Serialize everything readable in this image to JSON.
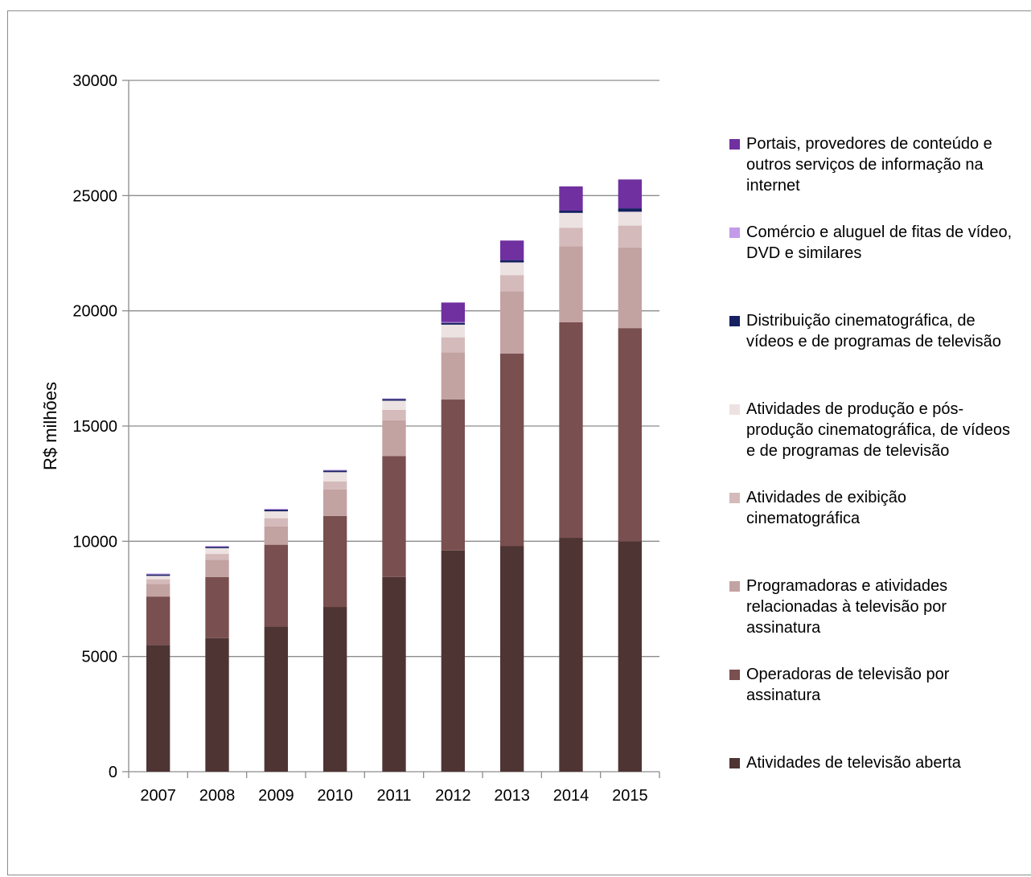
{
  "chart_data": {
    "type": "bar",
    "stacked": true,
    "title": "",
    "xlabel": "",
    "ylabel": "R$ milhões",
    "ylim": [
      0,
      30000
    ],
    "yticks": [
      0,
      5000,
      10000,
      15000,
      20000,
      25000,
      30000
    ],
    "grid": true,
    "legend_position": "right",
    "categories": [
      "2007",
      "2008",
      "2009",
      "2010",
      "2011",
      "2012",
      "2013",
      "2014",
      "2015"
    ],
    "series": [
      {
        "name": "Atividades de televisão aberta",
        "color": "#4f3434",
        "values": [
          5500,
          5800,
          6300,
          7150,
          8450,
          9600,
          9800,
          10150,
          10000
        ]
      },
      {
        "name": "Operadoras de televisão por assinatura",
        "color": "#7a4f4f",
        "values": [
          2100,
          2650,
          3550,
          3950,
          5250,
          6550,
          8350,
          9350,
          9250
        ]
      },
      {
        "name": "Programadoras e atividades relacionadas à televisão por assinatura",
        "color": "#c3a2a2",
        "values": [
          550,
          750,
          800,
          1150,
          1550,
          2050,
          2700,
          3300,
          3500
        ]
      },
      {
        "name": "Atividades de exibição cinematográfica",
        "color": "#d4baba",
        "values": [
          200,
          250,
          350,
          350,
          450,
          650,
          700,
          800,
          950
        ]
      },
      {
        "name": "Atividades de produção e pós-produção cinematográfica, de vídeos e de programas de televisão",
        "color": "#ede2e2",
        "values": [
          150,
          250,
          300,
          400,
          400,
          550,
          550,
          650,
          600
        ]
      },
      {
        "name": "Distribuição cinematográfica, de vídeos e de programas de televisão",
        "color": "#162161",
        "values": [
          60,
          60,
          70,
          70,
          70,
          80,
          100,
          100,
          150
        ]
      },
      {
        "name": "Comércio e aluguel de fitas de vídeo, DVD e similares",
        "color": "#c49be9",
        "values": [
          40,
          40,
          40,
          30,
          30,
          30,
          0,
          0,
          0
        ]
      },
      {
        "name": "Portais, provedores de conteúdo e outros serviços de informação na internet",
        "color": "#7030a0",
        "values": [
          0,
          0,
          0,
          0,
          0,
          850,
          850,
          1050,
          1250
        ]
      }
    ],
    "legend_lines": [
      [
        "Portais, provedores de conteúdo e",
        "outros serviços de informação na",
        "internet"
      ],
      [
        "Comércio e aluguel de fitas de vídeo,",
        "DVD e similares"
      ],
      [
        "Distribuição cinematográfica, de",
        "vídeos e de programas de televisão"
      ],
      [
        "Atividades de produção e pós-",
        "produção cinematográfica, de vídeos",
        "e de programas de televisão"
      ],
      [
        "Atividades de exibição",
        "cinematográfica"
      ],
      [
        "Programadoras e atividades",
        "relacionadas à televisão por",
        "assinatura"
      ],
      [
        "Operadoras de televisão por",
        "assinatura"
      ],
      [
        "Atividades de televisão aberta"
      ]
    ]
  }
}
